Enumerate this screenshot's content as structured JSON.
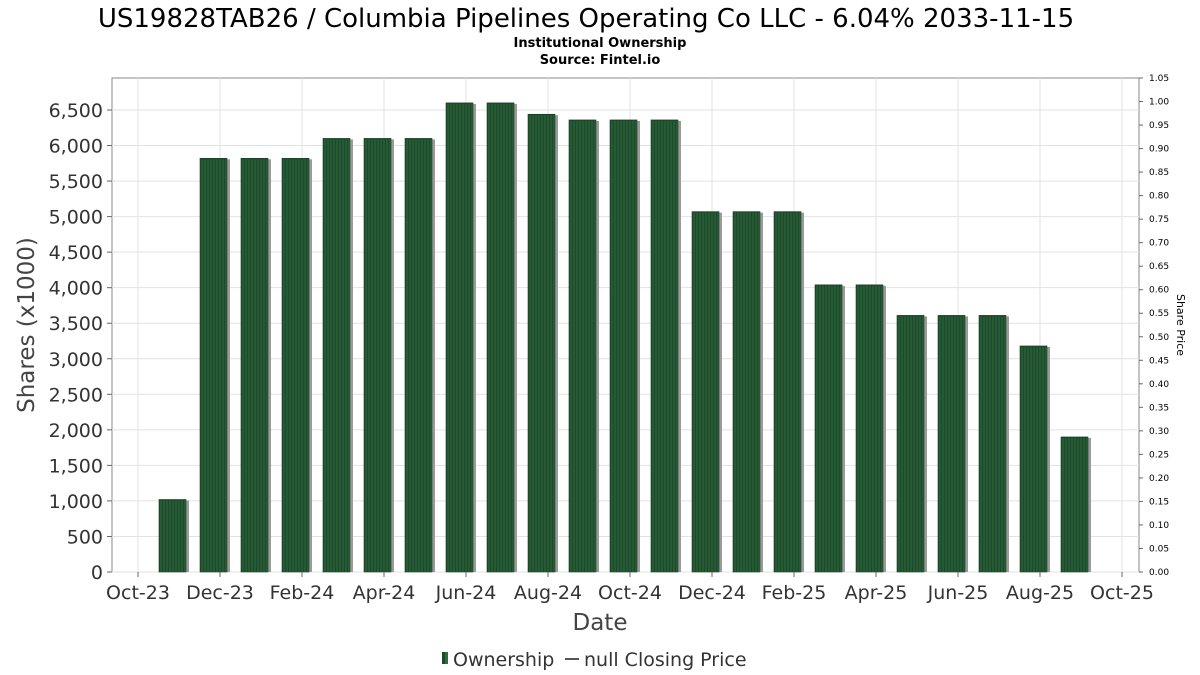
{
  "chart_data": {
    "type": "bar",
    "title": "US19828TAB26 / Columbia Pipelines Operating Co LLC - 6.04% 2033-11-15",
    "subtitle": "Institutional Ownership",
    "source": "Source: Fintel.io",
    "xlabel": "Date",
    "ylabel": "Shares (x1000)",
    "y2label": "Share Price",
    "x_tick_labels": [
      "Oct-23",
      "Dec-23",
      "Feb-24",
      "Apr-24",
      "Jun-24",
      "Aug-24",
      "Oct-24",
      "Dec-24",
      "Feb-25",
      "Apr-25",
      "Jun-25",
      "Aug-25",
      "Oct-25"
    ],
    "y_ticks": [
      0,
      500,
      1000,
      1500,
      2000,
      2500,
      3000,
      3500,
      4000,
      4500,
      5000,
      5500,
      6000,
      6500
    ],
    "y_tick_labels": [
      "0",
      "500",
      "1,000",
      "1,500",
      "2,000",
      "2,500",
      "3,000",
      "3,500",
      "4,000",
      "4,500",
      "5,000",
      "5,500",
      "6,000",
      "6,500"
    ],
    "ylim": [
      0,
      6950
    ],
    "y2_ticks": [
      "0.00",
      "0.05",
      "0.10",
      "0.15",
      "0.20",
      "0.25",
      "0.30",
      "0.35",
      "0.40",
      "0.45",
      "0.50",
      "0.55",
      "0.60",
      "0.65",
      "0.70",
      "0.75",
      "0.80",
      "0.85",
      "0.90",
      "0.95",
      "1.00",
      "1.05"
    ],
    "y2lim": [
      0,
      1.05
    ],
    "series": [
      {
        "name": "Ownership",
        "color": "#1e4a2c",
        "values": [
          1020,
          5820,
          5820,
          5820,
          6100,
          6100,
          6100,
          6600,
          6600,
          6440,
          6360,
          6360,
          6360,
          5070,
          5070,
          5070,
          4040,
          4040,
          3610,
          3610,
          3610,
          3180,
          1900
        ]
      }
    ],
    "legend": {
      "placement": "bottom-center",
      "items": [
        "Ownership",
        "null Closing Price"
      ]
    },
    "grid": true
  }
}
